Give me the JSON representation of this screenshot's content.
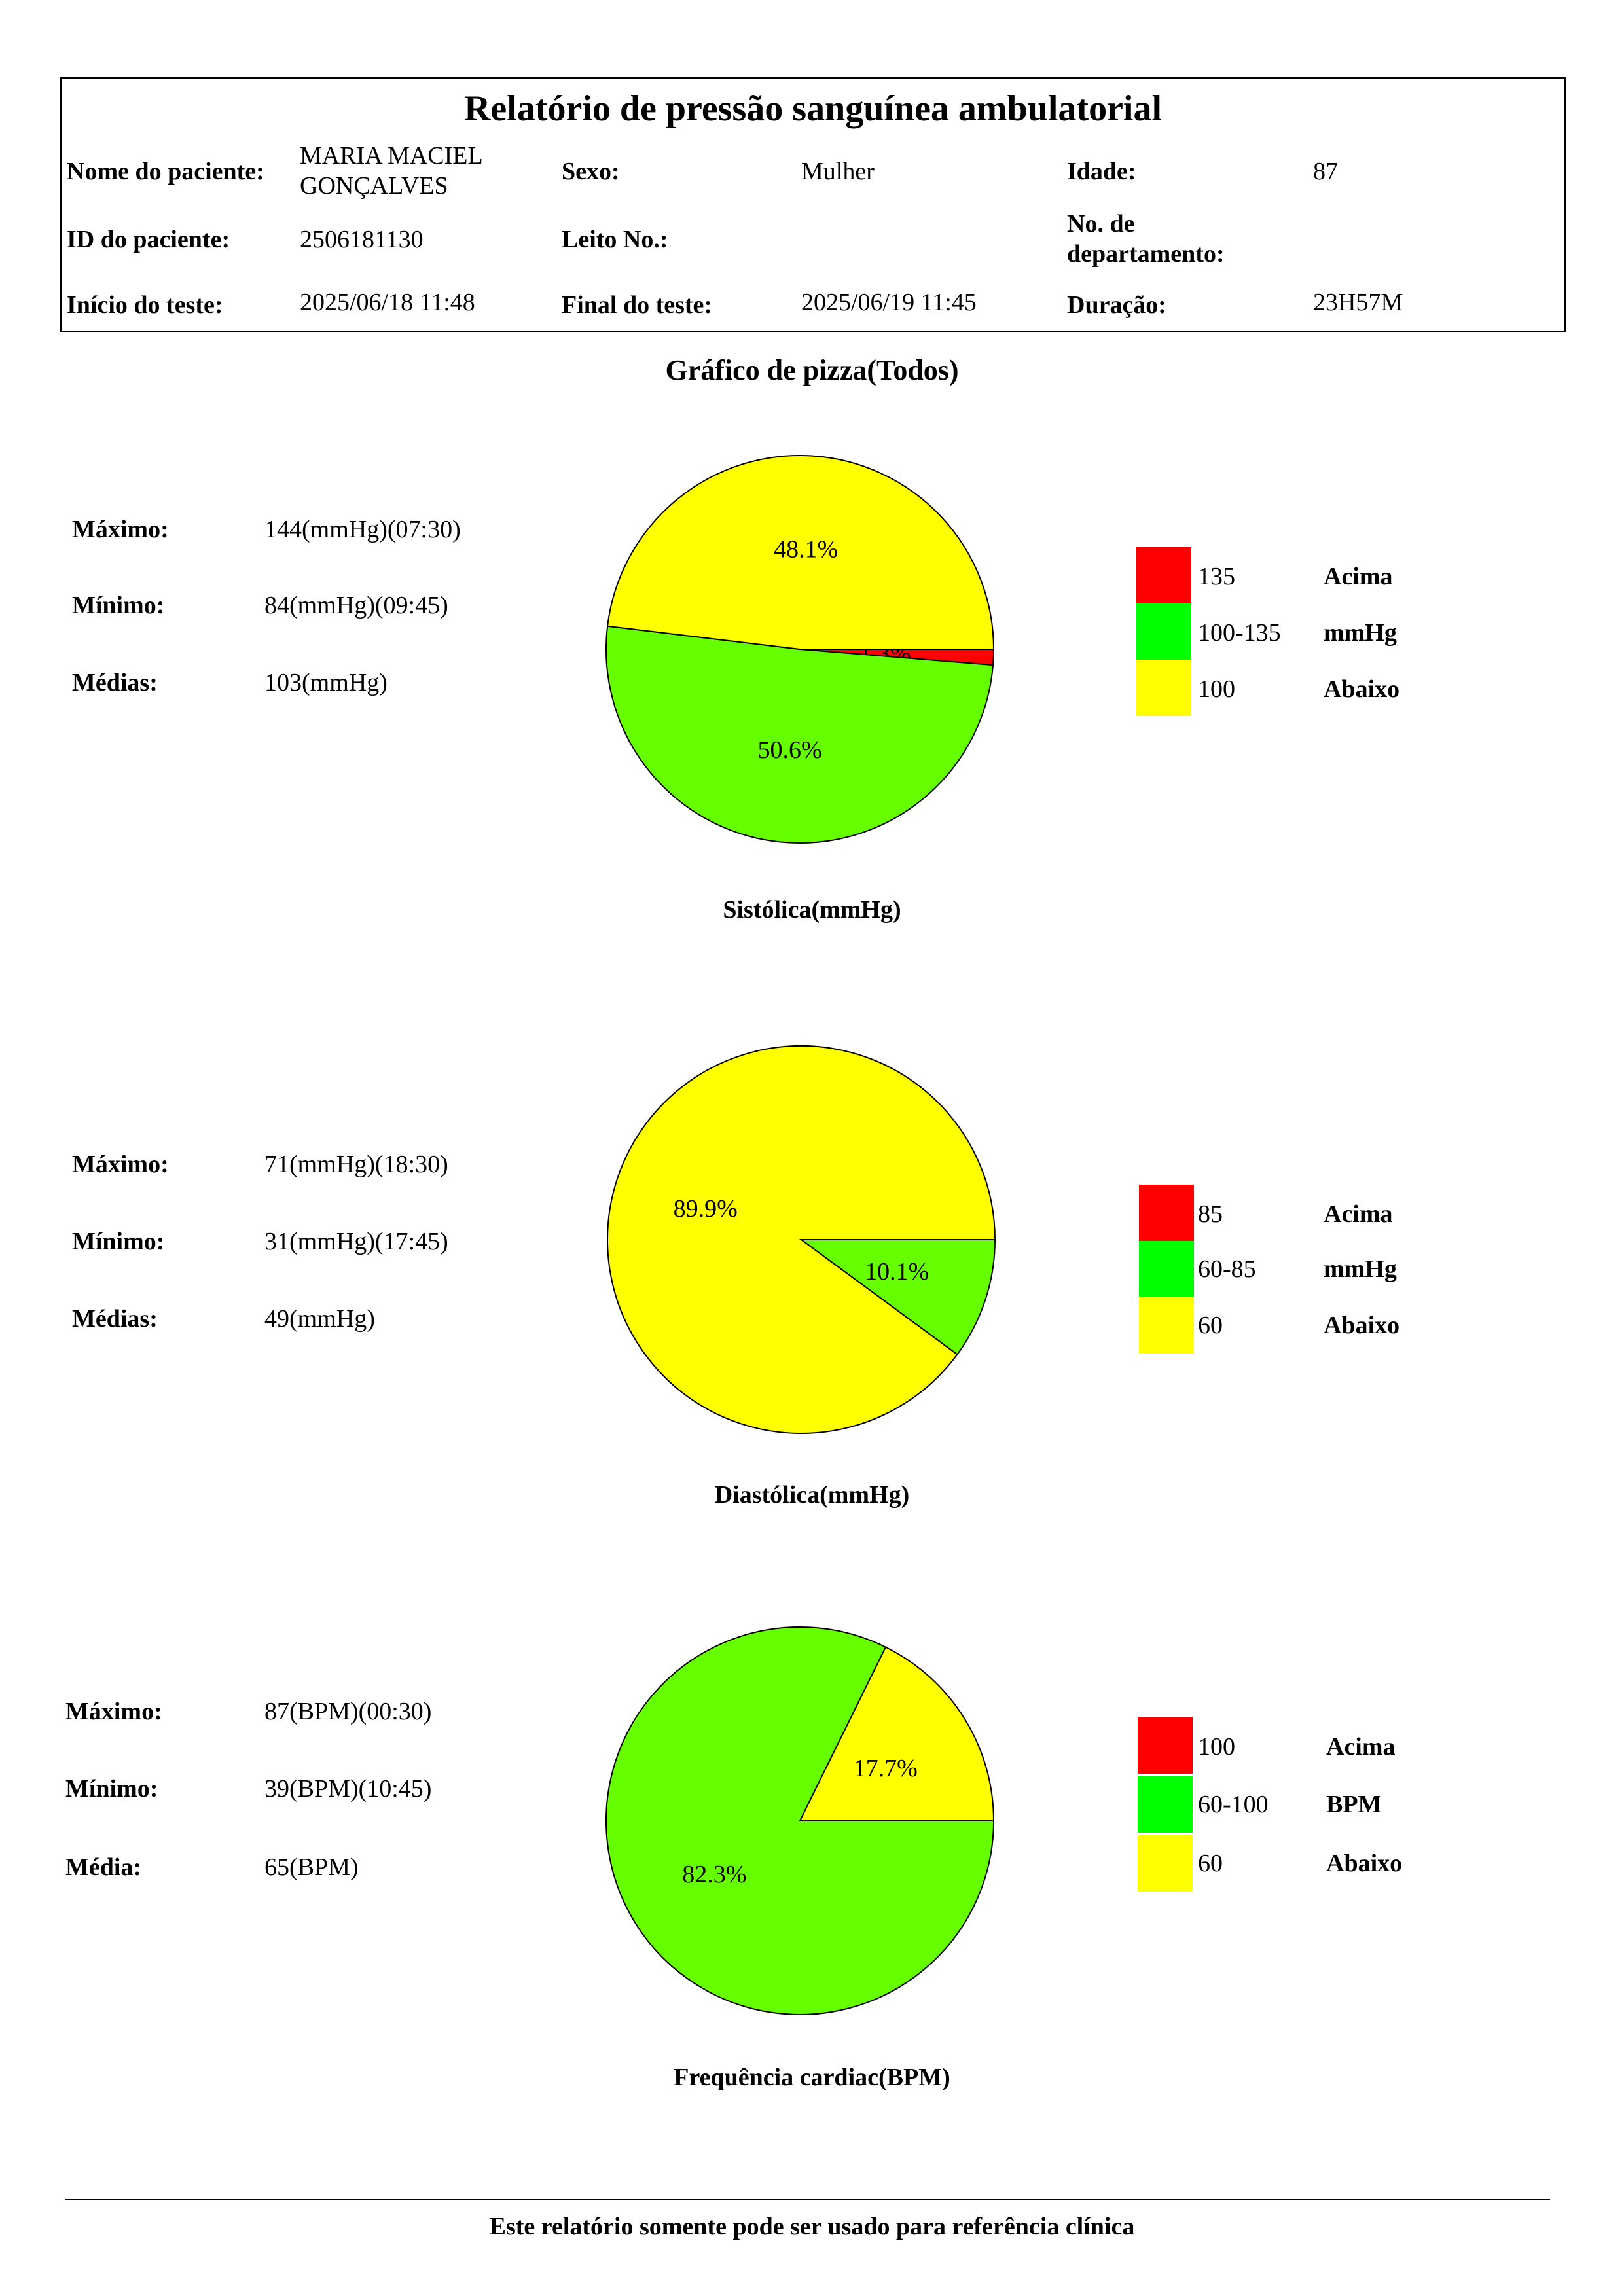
{
  "header": {
    "title": "Relatório de pressão sanguínea ambulatorial",
    "patient_name_label": "Nome do paciente:",
    "patient_name_line1": "MARIA MACIEL",
    "patient_name_line2": "GONÇALVES",
    "sex_label": "Sexo:",
    "sex_value": "Mulher",
    "age_label": "Idade:",
    "age_value": "87",
    "patient_id_label": "ID do paciente:",
    "patient_id_value": "2506181130",
    "bed_label": "Leito No.:",
    "bed_value": "",
    "dept_label_line1": "No. de",
    "dept_label_line2": "departamento:",
    "dept_value": "",
    "start_label": "Início do teste:",
    "start_value": "2025/06/18 11:48",
    "end_label": "Final do teste:",
    "end_value": "2025/06/19 11:45",
    "duration_label": "Duração:",
    "duration_value": "23H57M"
  },
  "section_title": "Gráfico de pizza(Todos)",
  "colors": {
    "above": "#ff0000",
    "normal": "#66ff00",
    "below": "#ffff00",
    "legend_normal": "#00ff00"
  },
  "chart_data": [
    {
      "type": "pie",
      "title": "Sistólica(mmHg)",
      "stats": [
        {
          "label": "Máximo:",
          "value": "144(mmHg)(07:30)"
        },
        {
          "label": "Mínimo:",
          "value": "84(mmHg)(09:45)"
        },
        {
          "label": "Médias:",
          "value": "103(mmHg)"
        }
      ],
      "slices": [
        {
          "category": "Acima",
          "percent": 1.3,
          "label": "1.3%",
          "color": "#ff0000"
        },
        {
          "category": "Normal",
          "percent": 50.6,
          "label": "50.6%",
          "color": "#66ff00"
        },
        {
          "category": "Abaixo",
          "percent": 48.1,
          "label": "48.1%",
          "color": "#ffff00"
        }
      ],
      "legend": [
        {
          "value": "135",
          "text": "Acima",
          "color": "#ff0000"
        },
        {
          "value": "100-135",
          "text": "mmHg",
          "color": "#00ff00"
        },
        {
          "value": "100",
          "text": "Abaixo",
          "color": "#ffff00"
        }
      ]
    },
    {
      "type": "pie",
      "title": "Diastólica(mmHg)",
      "stats": [
        {
          "label": "Máximo:",
          "value": "71(mmHg)(18:30)"
        },
        {
          "label": "Mínimo:",
          "value": "31(mmHg)(17:45)"
        },
        {
          "label": "Médias:",
          "value": "49(mmHg)"
        }
      ],
      "slices": [
        {
          "category": "Acima",
          "percent": 0,
          "label": "",
          "color": "#ff0000"
        },
        {
          "category": "Normal",
          "percent": 10.1,
          "label": "10.1%",
          "color": "#66ff00"
        },
        {
          "category": "Abaixo",
          "percent": 89.9,
          "label": "89.9%",
          "color": "#ffff00"
        }
      ],
      "legend": [
        {
          "value": "85",
          "text": "Acima",
          "color": "#ff0000"
        },
        {
          "value": "60-85",
          "text": "mmHg",
          "color": "#00ff00"
        },
        {
          "value": "60",
          "text": "Abaixo",
          "color": "#ffff00"
        }
      ]
    },
    {
      "type": "pie",
      "title": "Frequência cardiac(BPM)",
      "stats": [
        {
          "label": "Máximo:",
          "value": "87(BPM)(00:30)"
        },
        {
          "label": "Mínimo:",
          "value": "39(BPM)(10:45)"
        },
        {
          "label": "Média:",
          "value": "65(BPM)"
        }
      ],
      "slices": [
        {
          "category": "Acima",
          "percent": 0,
          "label": "",
          "color": "#ff0000"
        },
        {
          "category": "Normal",
          "percent": 82.3,
          "label": "82.3%",
          "color": "#66ff00"
        },
        {
          "category": "Abaixo",
          "percent": 17.7,
          "label": "17.7%",
          "color": "#ffff00"
        }
      ],
      "legend": [
        {
          "value": "100",
          "text": "Acima",
          "color": "#ff0000"
        },
        {
          "value": "60-100",
          "text": "BPM",
          "color": "#00ff00"
        },
        {
          "value": "60",
          "text": "Abaixo",
          "color": "#ffff00"
        }
      ]
    }
  ],
  "footer": {
    "text": "Este relatório somente pode ser usado para referência clínica"
  }
}
